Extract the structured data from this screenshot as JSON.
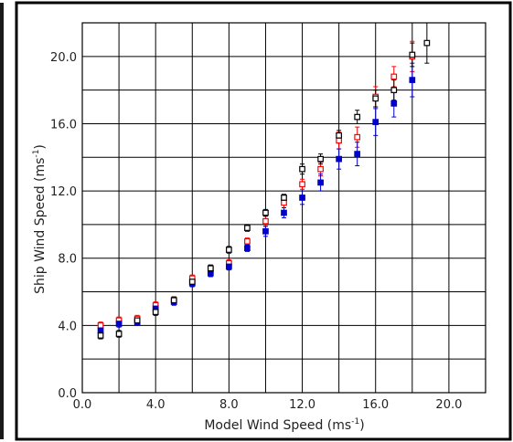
{
  "chart_data": {
    "type": "scatter",
    "title": "",
    "xlabel": {
      "text": "Model Wind Speed (ms",
      "sup": "-1",
      "close": ")"
    },
    "ylabel": {
      "text": "Ship Wind Speed (ms",
      "sup": "-1",
      "close": ")"
    },
    "xlim": [
      0,
      22
    ],
    "ylim": [
      0,
      22
    ],
    "grid": true,
    "x_ticks": [
      {
        "value": 0,
        "label": "0.0"
      },
      {
        "value": 4,
        "label": "4.0"
      },
      {
        "value": 8,
        "label": "8.0"
      },
      {
        "value": 12,
        "label": "12.0"
      },
      {
        "value": 16,
        "label": "16.0"
      },
      {
        "value": 20,
        "label": "20.0"
      }
    ],
    "y_ticks": [
      {
        "value": 0,
        "label": "0.0"
      },
      {
        "value": 4,
        "label": "4.0"
      },
      {
        "value": 8,
        "label": "8.0"
      },
      {
        "value": 12,
        "label": "12.0"
      },
      {
        "value": 16,
        "label": "16.0"
      },
      {
        "value": 20,
        "label": "20.0"
      }
    ],
    "series": [
      {
        "color": "#ff0000",
        "marker": "open-square",
        "points": [
          {
            "x": 1.0,
            "y": 4.0,
            "err": 0.2
          },
          {
            "x": 2.0,
            "y": 4.3,
            "err": 0.2
          },
          {
            "x": 3.0,
            "y": 4.4,
            "err": 0.2
          },
          {
            "x": 4.0,
            "y": 5.2,
            "err": 0.2
          },
          {
            "x": 5.0,
            "y": 5.5,
            "err": 0.2
          },
          {
            "x": 6.0,
            "y": 6.8,
            "err": 0.2
          },
          {
            "x": 7.0,
            "y": 7.3,
            "err": 0.2
          },
          {
            "x": 8.0,
            "y": 7.7,
            "err": 0.2
          },
          {
            "x": 9.0,
            "y": 9.0,
            "err": 0.2
          },
          {
            "x": 10.0,
            "y": 10.2,
            "err": 0.3
          },
          {
            "x": 11.0,
            "y": 11.3,
            "err": 0.3
          },
          {
            "x": 12.0,
            "y": 12.4,
            "err": 0.3
          },
          {
            "x": 13.0,
            "y": 13.3,
            "err": 0.4
          },
          {
            "x": 14.0,
            "y": 15.0,
            "err": 0.5
          },
          {
            "x": 15.0,
            "y": 15.2,
            "err": 0.6
          },
          {
            "x": 16.0,
            "y": 17.6,
            "err": 0.6
          },
          {
            "x": 17.0,
            "y": 18.8,
            "err": 0.6
          },
          {
            "x": 18.0,
            "y": 20.0,
            "err": 0.9
          }
        ]
      },
      {
        "color": "#0000cc",
        "marker": "filled-square",
        "points": [
          {
            "x": 1.0,
            "y": 3.7,
            "err": 0.2
          },
          {
            "x": 2.0,
            "y": 4.1,
            "err": 0.2
          },
          {
            "x": 3.0,
            "y": 4.2,
            "err": 0.2
          },
          {
            "x": 4.0,
            "y": 5.0,
            "err": 0.2
          },
          {
            "x": 5.0,
            "y": 5.4,
            "err": 0.2
          },
          {
            "x": 6.0,
            "y": 6.5,
            "err": 0.2
          },
          {
            "x": 7.0,
            "y": 7.1,
            "err": 0.2
          },
          {
            "x": 8.0,
            "y": 7.5,
            "err": 0.2
          },
          {
            "x": 9.0,
            "y": 8.6,
            "err": 0.2
          },
          {
            "x": 10.0,
            "y": 9.6,
            "err": 0.3
          },
          {
            "x": 11.0,
            "y": 10.7,
            "err": 0.3
          },
          {
            "x": 12.0,
            "y": 11.6,
            "err": 0.4
          },
          {
            "x": 13.0,
            "y": 12.5,
            "err": 0.5
          },
          {
            "x": 14.0,
            "y": 13.9,
            "err": 0.6
          },
          {
            "x": 15.0,
            "y": 14.2,
            "err": 0.7
          },
          {
            "x": 16.0,
            "y": 16.1,
            "err": 0.8
          },
          {
            "x": 17.0,
            "y": 17.2,
            "err": 0.8
          },
          {
            "x": 18.0,
            "y": 18.6,
            "err": 1.0
          }
        ]
      },
      {
        "color": "#000000",
        "marker": "open-square",
        "points": [
          {
            "x": 1.0,
            "y": 3.4,
            "err": 0.2
          },
          {
            "x": 2.0,
            "y": 3.5,
            "err": 0.2
          },
          {
            "x": 3.0,
            "y": 4.3,
            "err": 0.2
          },
          {
            "x": 4.0,
            "y": 4.8,
            "err": 0.2
          },
          {
            "x": 5.0,
            "y": 5.5,
            "err": 0.2
          },
          {
            "x": 6.0,
            "y": 6.6,
            "err": 0.2
          },
          {
            "x": 7.0,
            "y": 7.4,
            "err": 0.2
          },
          {
            "x": 8.0,
            "y": 8.5,
            "err": 0.2
          },
          {
            "x": 9.0,
            "y": 9.8,
            "err": 0.2
          },
          {
            "x": 10.0,
            "y": 10.7,
            "err": 0.2
          },
          {
            "x": 11.0,
            "y": 11.6,
            "err": 0.2
          },
          {
            "x": 12.0,
            "y": 13.3,
            "err": 0.3
          },
          {
            "x": 13.0,
            "y": 13.9,
            "err": 0.3
          },
          {
            "x": 14.0,
            "y": 15.3,
            "err": 0.3
          },
          {
            "x": 15.0,
            "y": 16.4,
            "err": 0.4
          },
          {
            "x": 16.0,
            "y": 17.5,
            "err": 0.5
          },
          {
            "x": 17.0,
            "y": 18.0,
            "err": 0.6
          },
          {
            "x": 18.0,
            "y": 20.1,
            "err": 0.7
          },
          {
            "x": 18.8,
            "y": 20.8,
            "err": 1.2
          }
        ]
      }
    ]
  }
}
